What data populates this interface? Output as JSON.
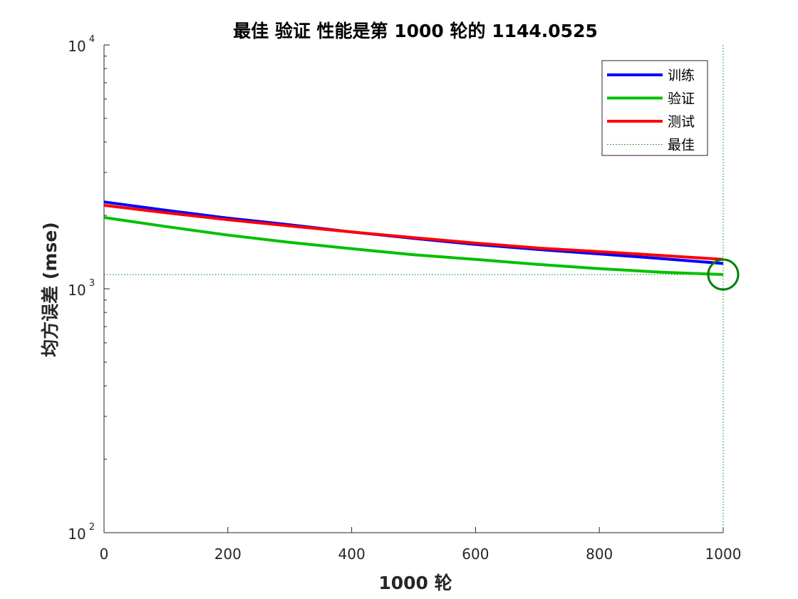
{
  "chart_data": {
    "type": "line",
    "title": "最佳 验证 性能是第 1000 轮的 1144.0525",
    "xlabel": "1000 轮",
    "ylabel": "均方误差 (mse)",
    "xlim": [
      0,
      1000
    ],
    "ylim": [
      100,
      10000
    ],
    "yscale": "log",
    "xticks": [
      0,
      200,
      400,
      600,
      800,
      1000
    ],
    "xtick_labels": [
      "0",
      "200",
      "400",
      "600",
      "800",
      "1000"
    ],
    "yticks": [
      {
        "value": 100,
        "base": "10",
        "exp": "2"
      },
      {
        "value": 1000,
        "base": "10",
        "exp": "3"
      },
      {
        "value": 10000,
        "base": "10",
        "exp": "4"
      }
    ],
    "grid": false,
    "legend_position": "top-right",
    "series": [
      {
        "name": "训练",
        "color": "#0000ff",
        "x": [
          0,
          100,
          200,
          300,
          400,
          500,
          600,
          700,
          800,
          900,
          1000
        ],
        "y": [
          2270,
          2100,
          1950,
          1830,
          1710,
          1610,
          1520,
          1450,
          1390,
          1330,
          1270
        ]
      },
      {
        "name": "验证",
        "color": "#00c000",
        "x": [
          0,
          100,
          200,
          300,
          400,
          500,
          600,
          700,
          800,
          900,
          1000
        ],
        "y": [
          1960,
          1800,
          1660,
          1550,
          1460,
          1380,
          1320,
          1260,
          1210,
          1170,
          1144.0525
        ]
      },
      {
        "name": "测试",
        "color": "#ff0000",
        "x": [
          0,
          100,
          200,
          300,
          400,
          500,
          600,
          700,
          800,
          900,
          1000
        ],
        "y": [
          2200,
          2050,
          1920,
          1810,
          1710,
          1620,
          1540,
          1470,
          1420,
          1370,
          1320
        ]
      }
    ],
    "best": {
      "name": "最佳",
      "x": 1000,
      "y": 1144.0525,
      "color": "#008000"
    }
  }
}
